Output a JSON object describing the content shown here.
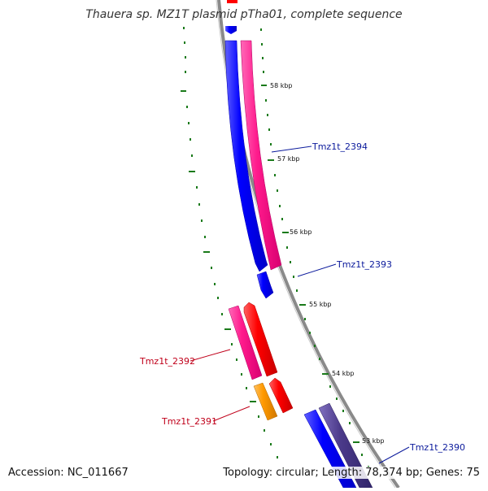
{
  "map": {
    "title": "Thauera sp. MZ1T plasmid pTha01, complete sequence",
    "accession_text": "Accession: NC_011667",
    "summary_text": "Topology: circular; Length: 78,374 bp; Genes: 75"
  },
  "scale_labels": [
    "58 kbp",
    "57 kbp",
    "56 kbp",
    "55 kbp",
    "54 kbp",
    "53 kbp"
  ],
  "gene_labels": {
    "g2394": "Tmz1t_2394",
    "g2393": "Tmz1t_2393",
    "g2392": "Tmz1t_2392",
    "g2391": "Tmz1t_2391",
    "g2390": "Tmz1t_2390"
  },
  "colors": {
    "backbone": "#8a8a8a",
    "scale_ticks": "#1a7a1a",
    "gc_ticks": "#1a7a1a",
    "forward_gene": "#0000ff",
    "forward_gene_alt": "#4b3a8a",
    "reverse_gene": "#ff1a8c",
    "red_gene": "#ff0000",
    "orange_gene": "#ff9900"
  }
}
